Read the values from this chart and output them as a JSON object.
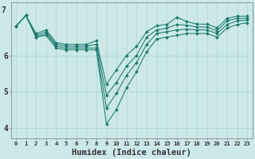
{
  "x": [
    0,
    1,
    2,
    3,
    4,
    5,
    6,
    7,
    8,
    9,
    10,
    11,
    12,
    13,
    14,
    15,
    16,
    17,
    18,
    19,
    20,
    21,
    22,
    23
  ],
  "line_low": [
    6.8,
    7.1,
    6.5,
    6.55,
    6.2,
    6.15,
    6.15,
    6.15,
    6.15,
    4.1,
    4.5,
    5.1,
    5.55,
    6.1,
    6.45,
    6.5,
    6.55,
    6.6,
    6.6,
    6.6,
    6.5,
    6.75,
    6.85,
    6.9
  ],
  "line_mid1": [
    6.8,
    7.1,
    6.5,
    6.6,
    6.25,
    6.2,
    6.2,
    6.2,
    6.2,
    4.55,
    4.95,
    5.45,
    5.8,
    6.3,
    6.6,
    6.65,
    6.7,
    6.72,
    6.7,
    6.7,
    6.6,
    6.85,
    6.95,
    6.97
  ],
  "line_mid2": [
    6.8,
    7.1,
    6.55,
    6.65,
    6.3,
    6.25,
    6.25,
    6.25,
    6.3,
    4.9,
    5.25,
    5.7,
    6.0,
    6.5,
    6.7,
    6.75,
    6.85,
    6.83,
    6.78,
    6.78,
    6.68,
    6.95,
    7.02,
    7.02
  ],
  "line_high": [
    6.8,
    7.1,
    6.6,
    6.7,
    6.35,
    6.3,
    6.3,
    6.3,
    6.4,
    5.2,
    5.6,
    6.0,
    6.25,
    6.65,
    6.82,
    6.85,
    7.05,
    6.93,
    6.86,
    6.86,
    6.76,
    7.02,
    7.08,
    7.08
  ],
  "line_color": "#1a7a6e",
  "bg_color": "#cde8e8",
  "grid_color": "#aed4d4",
  "xlabel": "Humidex (Indice chaleur)",
  "ylim": [
    3.7,
    7.45
  ],
  "xlim": [
    -0.5,
    23.5
  ],
  "yticks": [
    4,
    5,
    6
  ],
  "ytick_labels": [
    "4",
    "5",
    "6"
  ],
  "xticks": [
    0,
    1,
    2,
    3,
    4,
    5,
    6,
    7,
    8,
    9,
    10,
    11,
    12,
    13,
    14,
    15,
    16,
    17,
    18,
    19,
    20,
    21,
    22,
    23
  ],
  "y_top_label": "7",
  "x_fontsize": 5.2,
  "y_fontsize": 7.0,
  "xlabel_fontsize": 7.5
}
